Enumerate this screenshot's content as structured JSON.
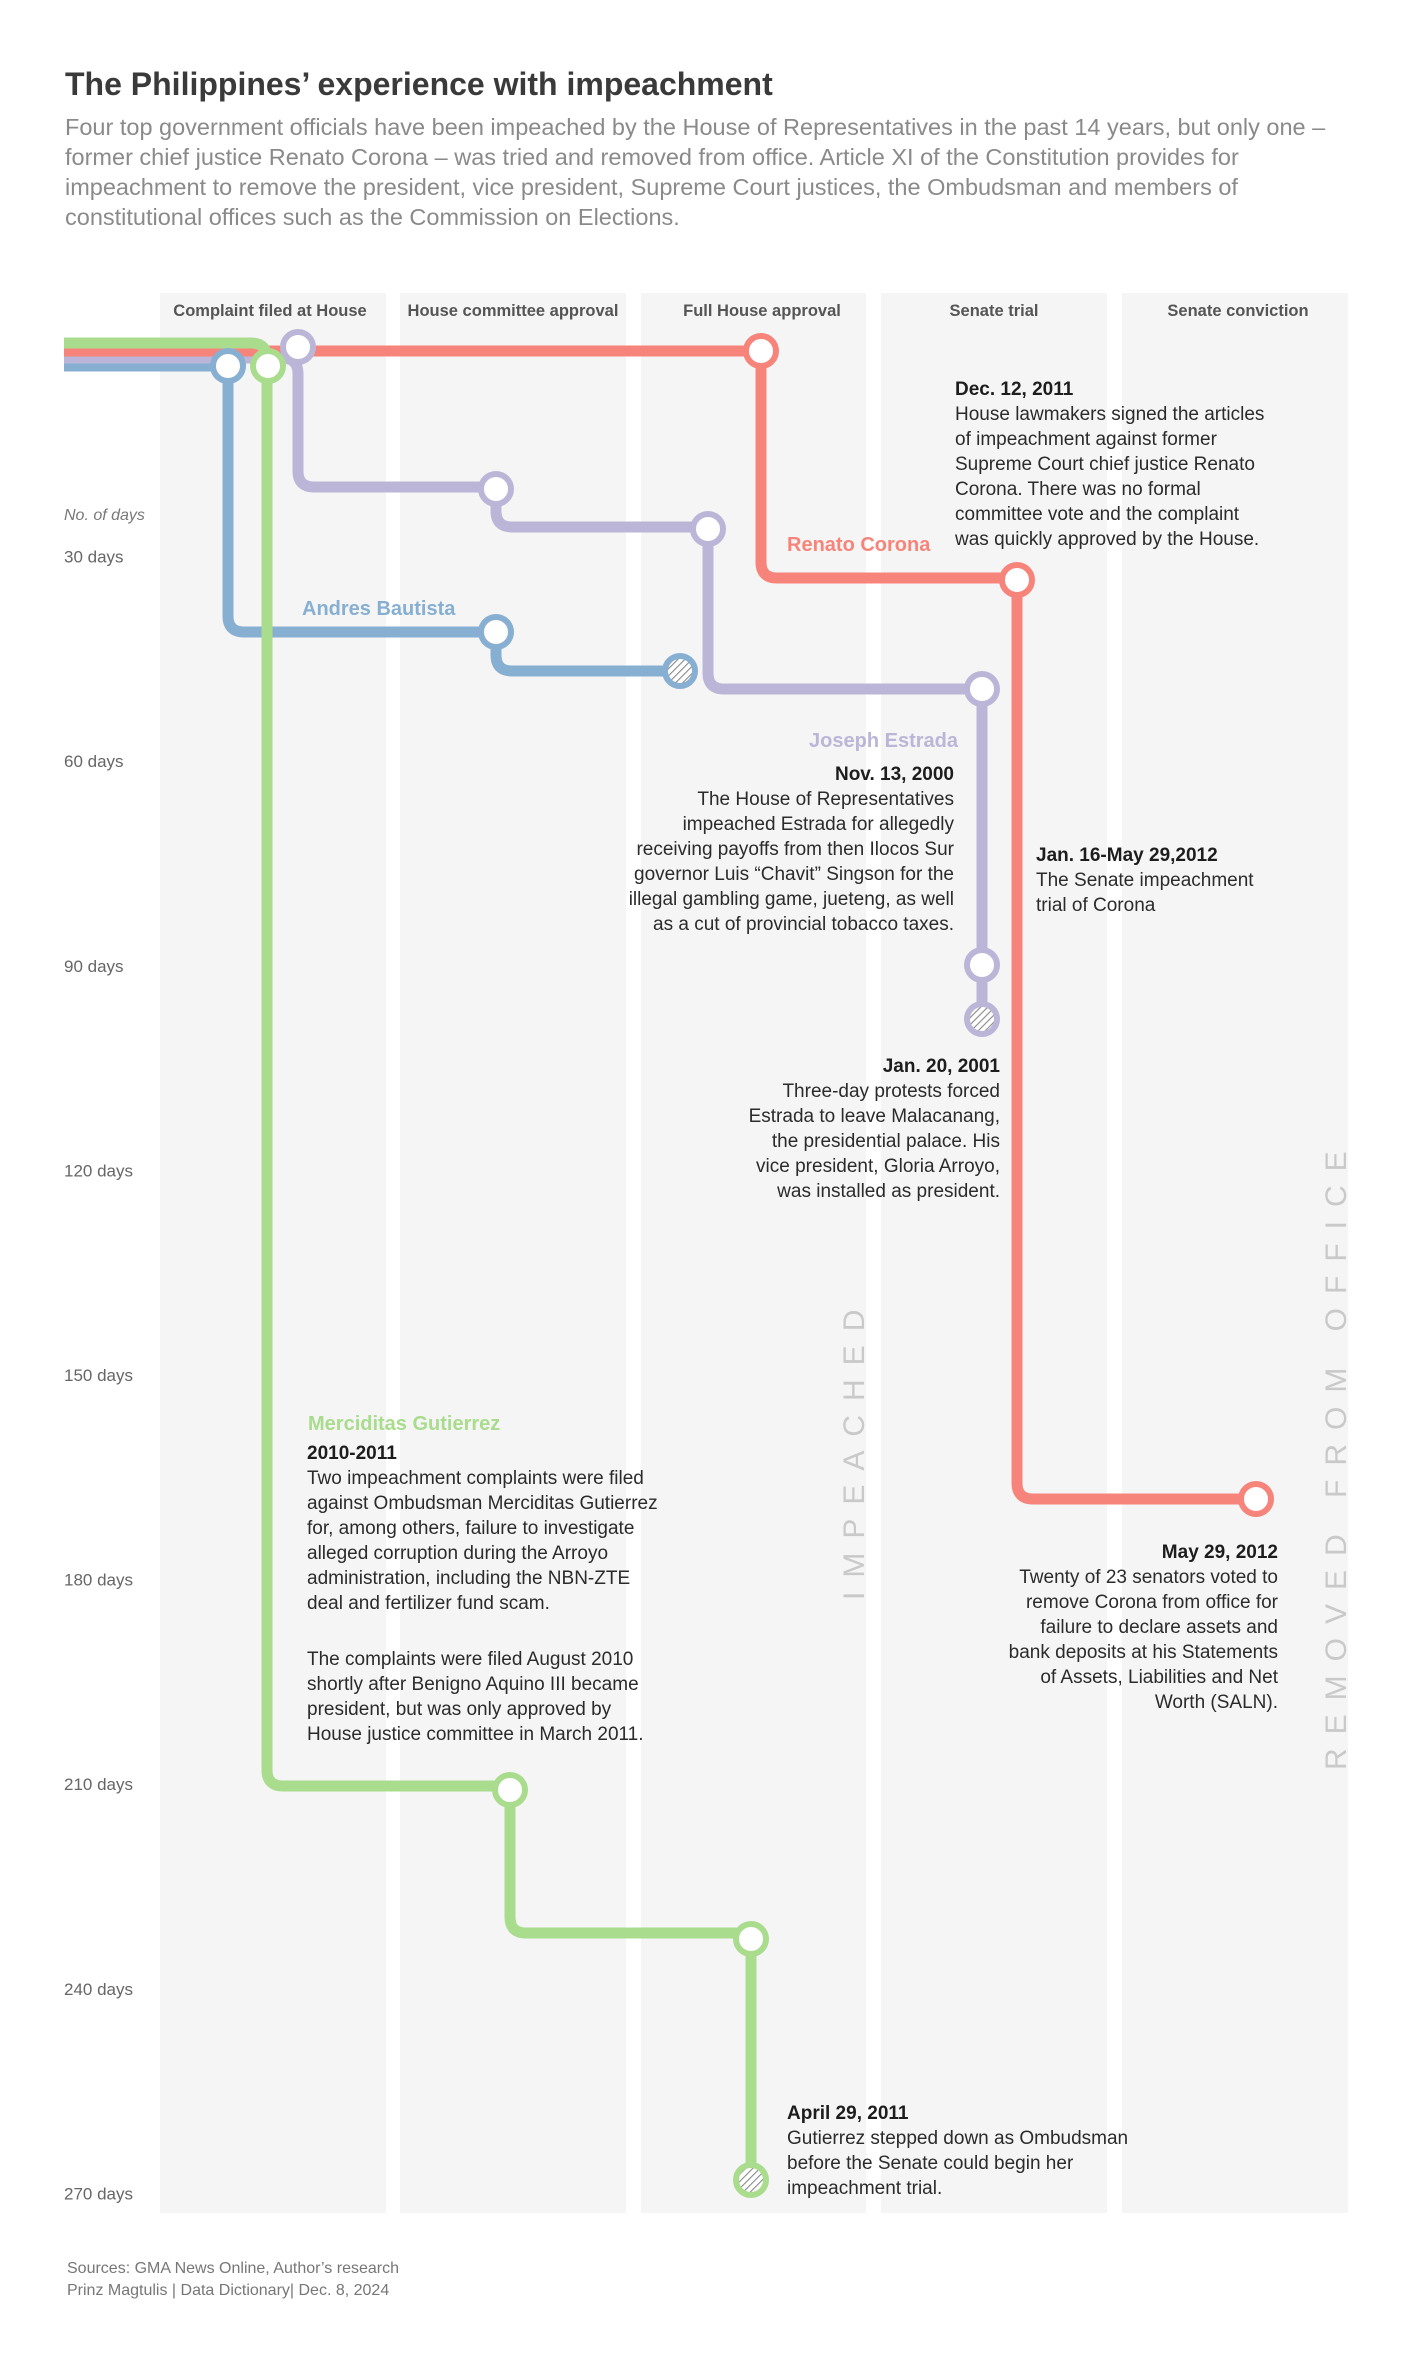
{
  "header": {
    "title": "The Philippines’ experience with impeachment",
    "subtitle": "Four top government officials have been impeached by the House of Representatives in the past 14 years, but only one – former chief justice Renato Corona – was tried and removed from office. Article XI of the Constitution provides for impeachment to remove the president, vice president, Supreme Court justices, the Ombudsman and members of constitutional offices such as the Commission on Elections."
  },
  "colors": {
    "corona": "#f7847a",
    "bautista": "#86afd2",
    "estrada": "#bbb6d8",
    "gutierrez": "#a9dc8d",
    "column_bg": "#f5f5f5"
  },
  "chart_data": {
    "type": "timeline",
    "stages": [
      "Complaint filed at House",
      "House committee approval",
      "Full House approval",
      "Senate trial",
      "Senate conviction"
    ],
    "y_axis": {
      "title": "No. of days",
      "ticks": [
        {
          "value": 30,
          "label": "30 days"
        },
        {
          "value": 60,
          "label": "60 days"
        },
        {
          "value": 90,
          "label": "90 days"
        },
        {
          "value": 120,
          "label": "120 days"
        },
        {
          "value": 150,
          "label": "150 days"
        },
        {
          "value": 180,
          "label": "180 days"
        },
        {
          "value": 210,
          "label": "210 days"
        },
        {
          "value": 240,
          "label": "240 days"
        },
        {
          "value": 270,
          "label": "270 days"
        }
      ],
      "range": [
        0,
        270
      ]
    },
    "zone_labels": [
      "IMPEACHED",
      "REMOVED FROM OFFICE"
    ],
    "officials": [
      {
        "name": "Renato Corona",
        "color": "#f7847a",
        "milestones": [
          {
            "stage": 0,
            "day": 0
          },
          {
            "stage": 2,
            "day": 0
          },
          {
            "stage": 3,
            "day": 33
          },
          {
            "stage": 4,
            "day": 168
          }
        ],
        "end": "convicted"
      },
      {
        "name": "Andres Bautista",
        "color": "#86afd2",
        "milestones": [
          {
            "stage": 0,
            "day": 2
          },
          {
            "stage": 1,
            "day": 41
          },
          {
            "stage": 2,
            "day": 47
          }
        ],
        "end": "left office"
      },
      {
        "name": "Joseph Estrada",
        "color": "#bbb6d8",
        "milestones": [
          {
            "stage": 0,
            "day": 0
          },
          {
            "stage": 1,
            "day": 20
          },
          {
            "stage": 2,
            "day": 26
          },
          {
            "stage": 3,
            "day": 50
          },
          {
            "stage": 3,
            "day": 90
          },
          {
            "stage": 3,
            "day": 98
          }
        ],
        "end": "left office"
      },
      {
        "name": "Merciditas Gutierrez",
        "color": "#a9dc8d",
        "milestones": [
          {
            "stage": 0,
            "day": 2
          },
          {
            "stage": 1,
            "day": 211
          },
          {
            "stage": 2,
            "day": 233
          },
          {
            "stage": 2,
            "day": 268
          }
        ],
        "end": "left office"
      }
    ]
  },
  "annotations": {
    "corona_dec": {
      "date": "Dec. 12, 2011",
      "lines": [
        "House lawmakers signed the articles",
        "of impeachment against former",
        "Supreme Court chief justice Renato",
        "Corona. There was no formal",
        "committee vote and the complaint",
        "was quickly approved by the House."
      ]
    },
    "estrada_nov": {
      "date": "Nov. 13, 2000",
      "lines": [
        "The House of Representatives",
        "impeached Estrada for allegedly",
        "receiving payoffs from then Ilocos Sur",
        "governor Luis “Chavit” Singson for the",
        "illegal gambling game, jueteng, as well",
        "as a cut of provincial tobacco taxes."
      ]
    },
    "corona_trial": {
      "date": "Jan. 16-May 29,2012",
      "lines": [
        "The Senate impeachment",
        "trial of Corona"
      ]
    },
    "estrada_jan": {
      "date": "Jan. 20, 2001",
      "lines": [
        "Three-day protests forced",
        "Estrada to leave Malacanang,",
        "the presidential palace. His",
        "vice president, Gloria Arroyo,",
        "was installed as president."
      ]
    },
    "gutierrez_info": {
      "date": "2010-2011",
      "lines": [
        "Two impeachment complaints were filed",
        "against Ombudsman Merciditas Gutierrez",
        "for, among others, failure to investigate",
        "alleged corruption during the Arroyo",
        "administration, including the NBN-ZTE",
        "deal and fertilizer fund scam."
      ],
      "lines2": [
        "The complaints were filed August 2010",
        "shortly after Benigno Aquino III became",
        "president, but was only approved by",
        "House justice committee in March 2011."
      ]
    },
    "corona_may": {
      "date": "May 29, 2012",
      "lines": [
        "Twenty of 23 senators voted to",
        "remove Corona from office for",
        "failure to declare assets and",
        "bank deposits at his Statements",
        "of Assets, Liabilities and Net",
        "Worth (SALN)."
      ]
    },
    "gutierrez_apr": {
      "date": "April 29, 2011",
      "lines": [
        "Gutierrez stepped down as Ombudsman",
        "before the Senate could begin her",
        "impeachment trial."
      ]
    }
  },
  "footer": {
    "sources": "Sources: GMA News Online, Author’s research",
    "credit": "Prinz Magtulis | Data Dictionary| Dec. 8, 2024"
  }
}
